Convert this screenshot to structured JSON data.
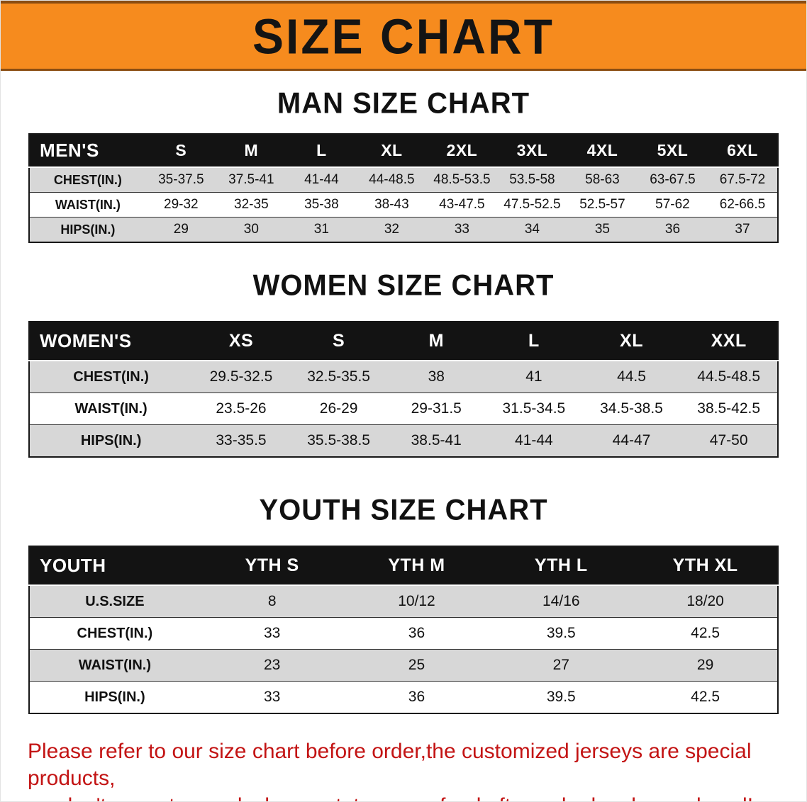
{
  "banner": {
    "title": "SIZE CHART"
  },
  "colors": {
    "banner_bg": "#f68b1e",
    "banner_edge": "#8a4d12",
    "table_header_bg": "#131313",
    "table_header_text": "#ffffff",
    "row_stripe": "#d7d7d7",
    "note_text": "#c31414"
  },
  "chart_data": [
    {
      "type": "table",
      "title": "MAN SIZE CHART",
      "columns": [
        "MEN'S",
        "S",
        "M",
        "L",
        "XL",
        "2XL",
        "3XL",
        "4XL",
        "5XL",
        "6XL"
      ],
      "rows": [
        [
          "CHEST(IN.)",
          "35-37.5",
          "37.5-41",
          "41-44",
          "44-48.5",
          "48.5-53.5",
          "53.5-58",
          "58-63",
          "63-67.5",
          "67.5-72"
        ],
        [
          "WAIST(IN.)",
          "29-32",
          "32-35",
          "35-38",
          "38-43",
          "43-47.5",
          "47.5-52.5",
          "52.5-57",
          "57-62",
          "62-66.5"
        ],
        [
          "HIPS(IN.)",
          "29",
          "30",
          "31",
          "32",
          "33",
          "34",
          "35",
          "36",
          "37"
        ]
      ]
    },
    {
      "type": "table",
      "title": "WOMEN SIZE CHART",
      "columns": [
        "WOMEN'S",
        "XS",
        "S",
        "M",
        "L",
        "XL",
        "XXL"
      ],
      "rows": [
        [
          "CHEST(IN.)",
          "29.5-32.5",
          "32.5-35.5",
          "38",
          "41",
          "44.5",
          "44.5-48.5"
        ],
        [
          "WAIST(IN.)",
          "23.5-26",
          "26-29",
          "29-31.5",
          "31.5-34.5",
          "34.5-38.5",
          "38.5-42.5"
        ],
        [
          "HIPS(IN.)",
          "33-35.5",
          "35.5-38.5",
          "38.5-41",
          "41-44",
          "44-47",
          "47-50"
        ]
      ]
    },
    {
      "type": "table",
      "title": "YOUTH SIZE CHART",
      "columns": [
        "YOUTH",
        "YTH S",
        "YTH M",
        "YTH L",
        "YTH XL"
      ],
      "rows": [
        [
          "U.S.SIZE",
          "8",
          "10/12",
          "14/16",
          "18/20"
        ],
        [
          "CHEST(IN.)",
          "33",
          "36",
          "39.5",
          "42.5"
        ],
        [
          "WAIST(IN.)",
          "23",
          "25",
          "27",
          "29"
        ],
        [
          "HIPS(IN.)",
          "33",
          "36",
          "39.5",
          "42.5"
        ]
      ]
    }
  ],
  "note": {
    "line1": "Please refer to our size chart before order,the customized jerseys are special products,",
    "line2": "we don't accept cancel, change, teturn or refund after order has been placed!"
  }
}
